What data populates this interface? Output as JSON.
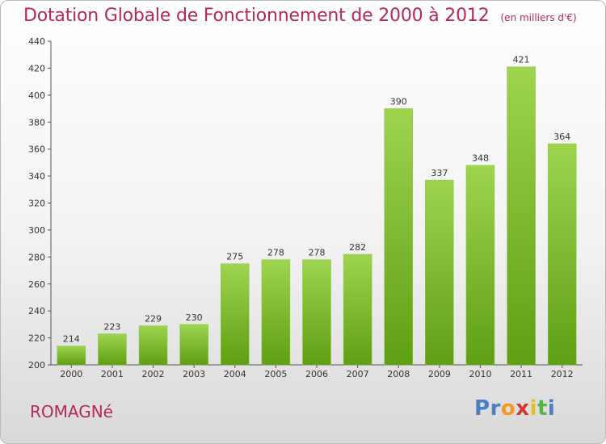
{
  "header": {
    "title": "Dotation Globale de Fonctionnement de 2000 à 2012",
    "unit": "(en milliers d'€)"
  },
  "footer": {
    "commune": "ROMAGNé",
    "logo_text": "Proxiti"
  },
  "colors": {
    "title": "#b5285f",
    "bar_top": "#9ed44e",
    "bar_bottom": "#5f9f14",
    "logo": [
      "#4a7fc1",
      "#4a7fc1",
      "#f39a1e",
      "#d7372f",
      "#e3c21c",
      "#58b447",
      "#4a7fc1"
    ]
  },
  "chart_data": {
    "type": "bar",
    "title": "Dotation Globale de Fonctionnement de 2000 à 2012",
    "subtitle": "(en milliers d'€)",
    "xlabel": "",
    "ylabel": "",
    "categories": [
      "2000",
      "2001",
      "2002",
      "2003",
      "2004",
      "2005",
      "2006",
      "2007",
      "2008",
      "2009",
      "2010",
      "2011",
      "2012"
    ],
    "values": [
      214,
      223,
      229,
      230,
      275,
      278,
      278,
      282,
      390,
      337,
      348,
      421,
      364
    ],
    "ylim": [
      200,
      440
    ],
    "yticks": [
      200,
      220,
      240,
      260,
      280,
      300,
      320,
      340,
      360,
      380,
      400,
      420,
      440
    ],
    "grid": false,
    "data_labels": true
  }
}
